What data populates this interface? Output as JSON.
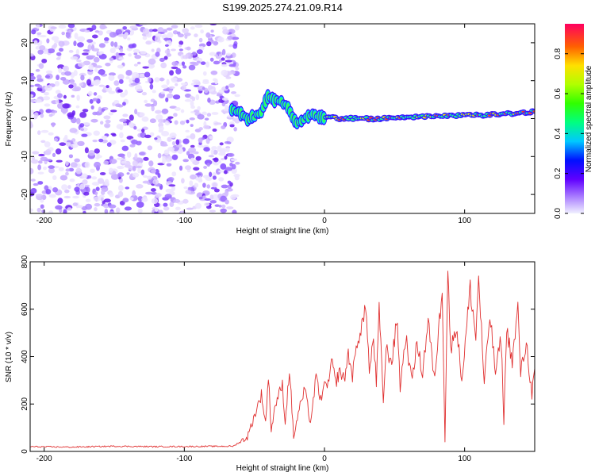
{
  "title": "S199.2025.274.21.09.R14",
  "chart_data": [
    {
      "type": "heatmap",
      "title": "S199.2025.274.21.09.R14",
      "xlabel": "Height of straight line (km)",
      "ylabel": "Frequency (Hz)",
      "xlim": [
        -210,
        150
      ],
      "ylim": [
        -25,
        25
      ],
      "xticks": [
        -200,
        -100,
        0,
        100
      ],
      "xtick_labels": [
        "-200",
        "-100",
        "0",
        "100"
      ],
      "yticks": [
        -20,
        -10,
        0,
        10,
        20
      ],
      "ytick_labels": [
        "-20",
        "-10",
        "0",
        "10",
        "20"
      ],
      "grid": false,
      "noise_region_x": [
        -210,
        -62
      ],
      "signal_trace": {
        "x": [
          -66,
          -60,
          -55,
          -50,
          -45,
          -40,
          -35,
          -30,
          -25,
          -20,
          -15,
          -10,
          -5,
          0,
          10,
          20,
          40,
          60,
          80,
          100,
          120,
          140,
          150
        ],
        "freq": [
          2.5,
          1.5,
          0,
          0.5,
          2,
          6,
          5,
          4.5,
          2,
          -1,
          0,
          1,
          0.5,
          0.5,
          0,
          0,
          0,
          0.5,
          0.5,
          0.8,
          1,
          1.5,
          1.8
        ]
      },
      "colorbar": {
        "label": "Normalized spectral amplitude",
        "range": [
          0,
          0.95
        ],
        "ticks": [
          0,
          0.2,
          0.4,
          0.6,
          0.8
        ],
        "tick_labels": [
          "0.0",
          "0.2",
          "0.4",
          "0.6",
          "0.8"
        ]
      }
    },
    {
      "type": "line",
      "xlabel": "Height of straight line (km)",
      "ylabel": "SNR (10 * v/v)",
      "xlim": [
        -210,
        150
      ],
      "ylim": [
        0,
        800
      ],
      "xticks": [
        -200,
        -100,
        0,
        100
      ],
      "xtick_labels": [
        "-200",
        "-100",
        "0",
        "100"
      ],
      "yticks": [
        0,
        200,
        400,
        600,
        800
      ],
      "ytick_labels": [
        "0",
        "200",
        "400",
        "600",
        "800"
      ],
      "color": "#e03030",
      "grid": false,
      "series": [
        {
          "name": "SNR",
          "x": [
            -210,
            -180,
            -150,
            -120,
            -90,
            -65,
            -55,
            -50,
            -45,
            -42,
            -40,
            -38,
            -35,
            -30,
            -28,
            -25,
            -22,
            -18,
            -14,
            -10,
            -6,
            -2,
            0,
            2,
            5,
            8,
            11,
            14,
            17,
            20,
            24,
            28,
            30,
            32,
            35,
            37,
            39,
            42,
            44,
            48,
            52,
            54,
            58,
            62,
            66,
            70,
            74,
            78,
            80,
            84,
            86,
            88,
            90,
            94,
            98,
            104,
            108,
            110,
            114,
            118,
            122,
            126,
            128,
            130,
            134,
            138,
            140,
            144,
            148,
            150
          ],
          "y": [
            20,
            18,
            22,
            20,
            21,
            22,
            60,
            150,
            240,
            120,
            320,
            90,
            200,
            280,
            120,
            350,
            60,
            180,
            260,
            120,
            310,
            200,
            320,
            250,
            380,
            290,
            340,
            300,
            410,
            320,
            480,
            560,
            600,
            330,
            480,
            280,
            590,
            220,
            430,
            380,
            560,
            270,
            490,
            300,
            450,
            330,
            560,
            310,
            400,
            700,
            50,
            790,
            420,
            540,
            300,
            690,
            480,
            740,
            280,
            580,
            330,
            480,
            130,
            520,
            380,
            600,
            330,
            460,
            240,
            350
          ]
        }
      ]
    }
  ]
}
